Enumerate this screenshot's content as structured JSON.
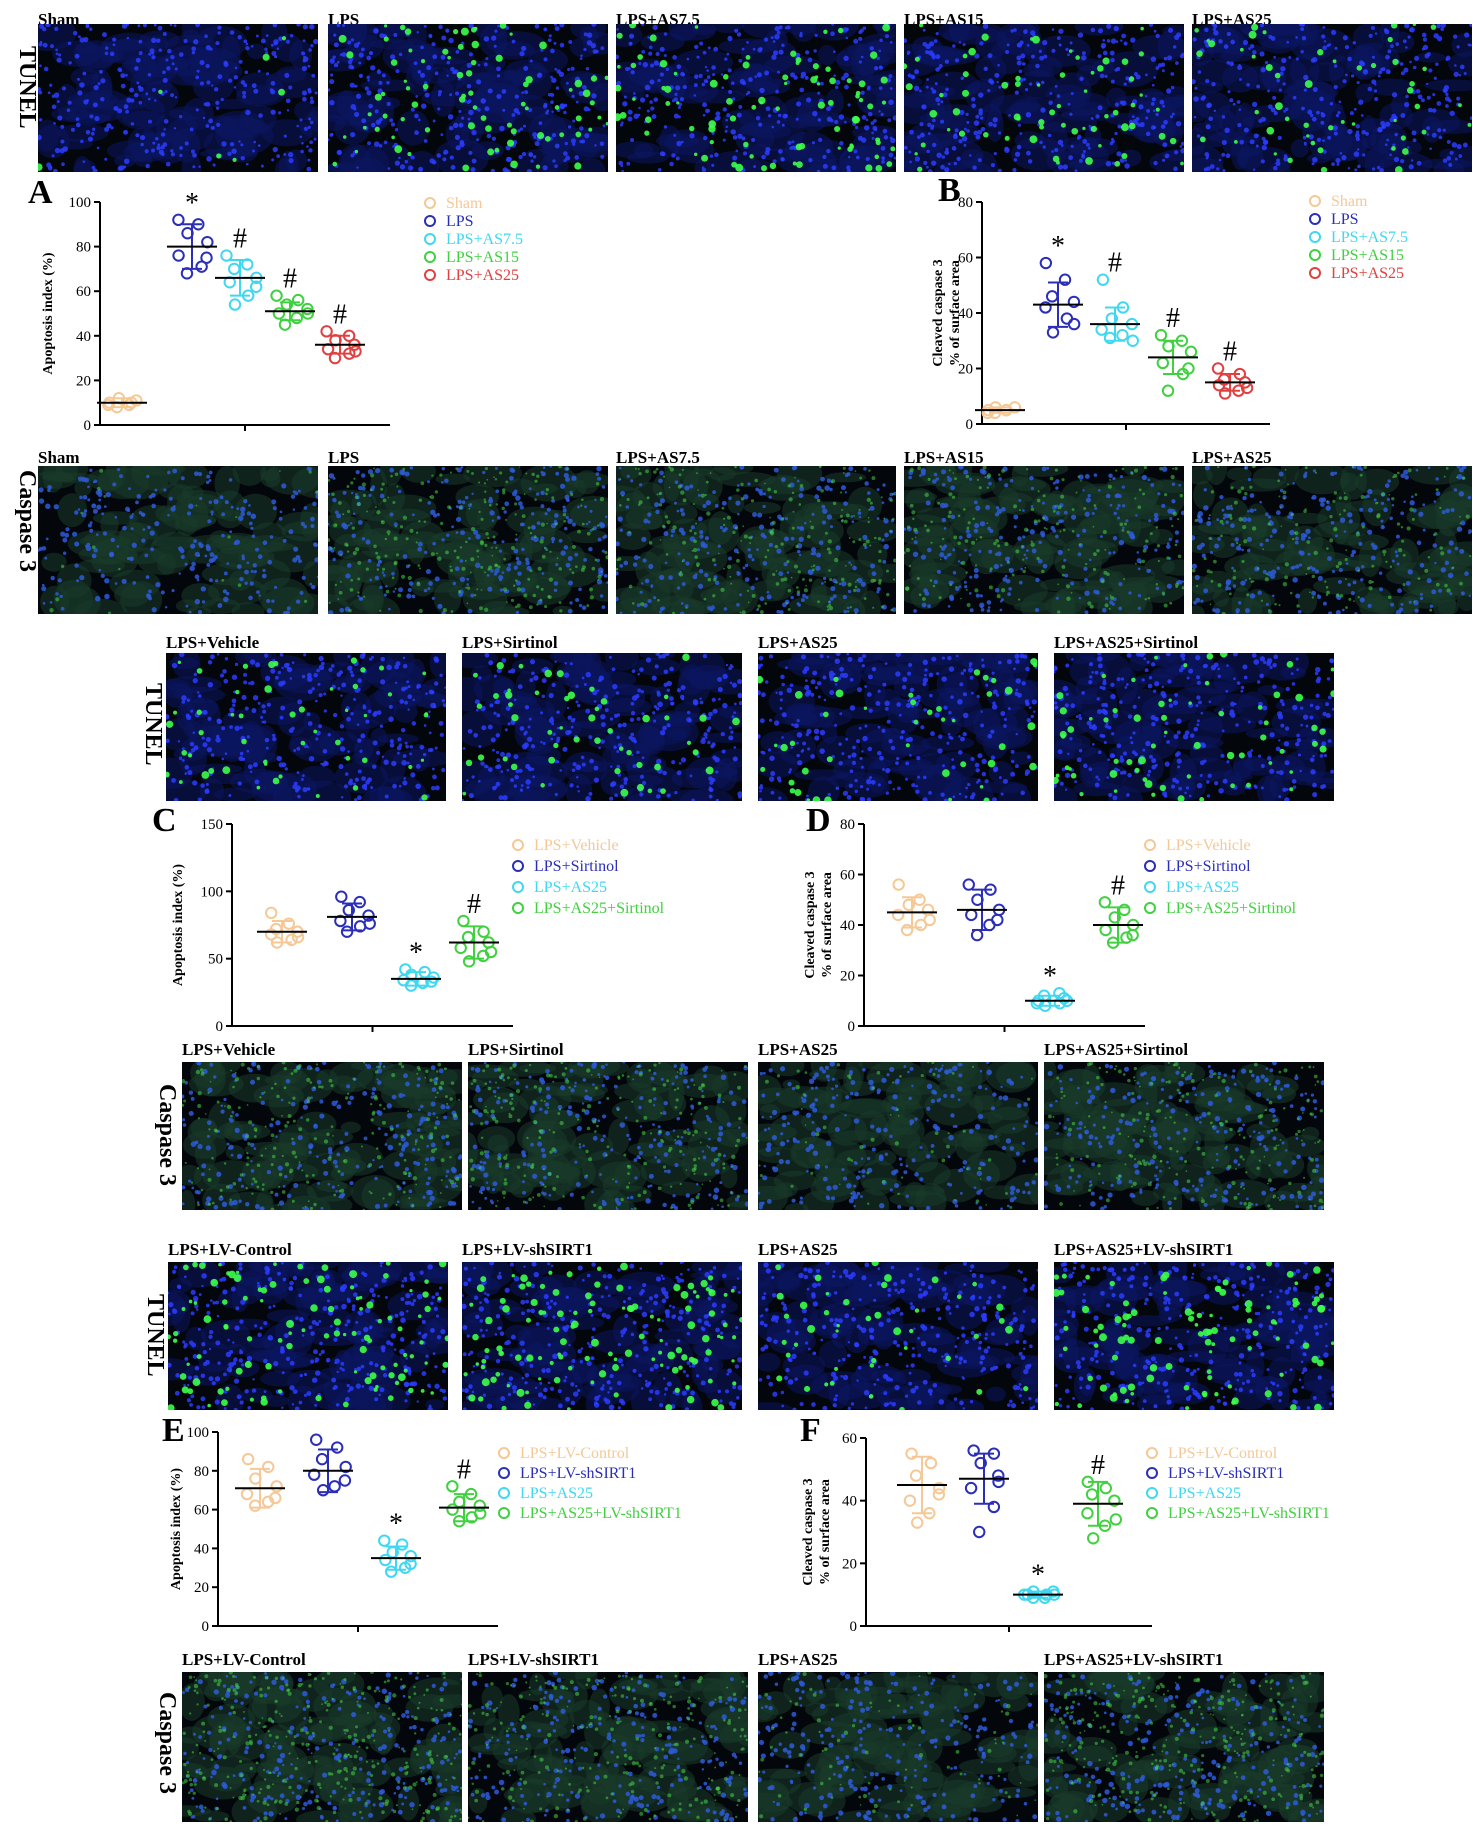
{
  "rows": [
    {
      "id": "r1",
      "stain": "TUNEL",
      "type": "tunel",
      "labels": [
        "Sham",
        "LPS",
        "LPS+AS7.5",
        "LPS+AS15",
        "LPS+AS25"
      ],
      "levels": [
        0.05,
        0.55,
        0.6,
        0.45,
        0.35
      ]
    },
    {
      "id": "r2",
      "stain": "Caspase 3",
      "type": "casp",
      "labels": [
        "Sham",
        "LPS",
        "LPS+AS7.5",
        "LPS+AS15",
        "LPS+AS25"
      ],
      "levels": [
        0.05,
        0.6,
        0.55,
        0.45,
        0.4
      ]
    },
    {
      "id": "r3",
      "stain": "TUNEL",
      "type": "tunel",
      "labels": [
        "LPS+Vehicle",
        "LPS+Sirtinol",
        "LPS+AS25",
        "LPS+AS25+Sirtinol"
      ],
      "levels": [
        0.35,
        0.35,
        0.3,
        0.45
      ]
    },
    {
      "id": "r4",
      "stain": "Caspase 3",
      "type": "casp",
      "labels": [
        "LPS+Vehicle",
        "LPS+Sirtinol",
        "LPS+AS25",
        "LPS+AS25+Sirtinol"
      ],
      "levels": [
        0.55,
        0.55,
        0.15,
        0.5
      ]
    },
    {
      "id": "r5",
      "stain": "TUNEL",
      "type": "tunel",
      "labels": [
        "LPS+LV-Control",
        "LPS+LV-shSIRT1",
        "LPS+AS25",
        "LPS+AS25+LV-shSIRT1"
      ],
      "levels": [
        0.75,
        0.85,
        0.3,
        0.7
      ]
    },
    {
      "id": "r6",
      "stain": "Caspase 3",
      "type": "casp",
      "labels": [
        "LPS+LV-Control",
        "LPS+LV-shSIRT1",
        "LPS+AS25",
        "LPS+AS25+LV-shSIRT1"
      ],
      "levels": [
        0.8,
        0.6,
        0.2,
        0.75
      ]
    }
  ],
  "chart_data": [
    {
      "panel": "A",
      "type": "scatter",
      "ylabel": "Apoptosis index (%)",
      "ylim": [
        0,
        100
      ],
      "yticks": [
        0,
        20,
        40,
        60,
        80,
        100
      ],
      "legend": "top-right",
      "series": [
        {
          "name": "Sham",
          "color": "#F5C896",
          "mean": 10,
          "sd": 2,
          "marker": "",
          "values": [
            8,
            9,
            10,
            11,
            12,
            10,
            9
          ]
        },
        {
          "name": "LPS",
          "color": "#2B2FB8",
          "mean": 80,
          "sd": 10,
          "marker": "*",
          "values": [
            68,
            71,
            76,
            82,
            86,
            90,
            92,
            75
          ]
        },
        {
          "name": "LPS+AS7.5",
          "color": "#40D8F0",
          "mean": 66,
          "sd": 8,
          "marker": "#",
          "values": [
            54,
            58,
            64,
            66,
            70,
            72,
            76,
            62
          ]
        },
        {
          "name": "LPS+AS15",
          "color": "#40D040",
          "mean": 51,
          "sd": 4,
          "marker": "#",
          "values": [
            45,
            48,
            50,
            52,
            54,
            56,
            58,
            50
          ]
        },
        {
          "name": "LPS+AS25",
          "color": "#E04040",
          "mean": 36,
          "sd": 4,
          "marker": "#",
          "values": [
            30,
            32,
            34,
            36,
            38,
            40,
            42,
            33
          ]
        }
      ]
    },
    {
      "panel": "B",
      "type": "scatter",
      "ylabel": [
        "Cleaved caspase 3",
        "% of surface area"
      ],
      "ylim": [
        0,
        80
      ],
      "yticks": [
        0,
        20,
        40,
        60,
        80
      ],
      "legend": "top-right",
      "series": [
        {
          "name": "Sham",
          "color": "#F5C896",
          "mean": 5,
          "sd": 1,
          "marker": "",
          "values": [
            4,
            5,
            5,
            6,
            6,
            5,
            4
          ]
        },
        {
          "name": "LPS",
          "color": "#2B2FB8",
          "mean": 43,
          "sd": 8,
          "marker": "*",
          "values": [
            33,
            38,
            42,
            44,
            46,
            52,
            58,
            36
          ]
        },
        {
          "name": "LPS+AS7.5",
          "color": "#40D8F0",
          "mean": 36,
          "sd": 6,
          "marker": "#",
          "values": [
            31,
            32,
            34,
            36,
            38,
            42,
            52,
            30
          ]
        },
        {
          "name": "LPS+AS15",
          "color": "#40D040",
          "mean": 24,
          "sd": 6,
          "marker": "#",
          "values": [
            12,
            18,
            22,
            26,
            28,
            30,
            32,
            20
          ]
        },
        {
          "name": "LPS+AS25",
          "color": "#E04040",
          "mean": 15,
          "sd": 3,
          "marker": "#",
          "values": [
            11,
            12,
            14,
            15,
            16,
            18,
            20,
            13
          ]
        }
      ]
    },
    {
      "panel": "C",
      "type": "scatter",
      "ylabel": "Apoptosis index (%)",
      "ylim": [
        0,
        150
      ],
      "yticks": [
        0,
        50,
        100,
        150
      ],
      "legend": "top-right",
      "series": [
        {
          "name": "LPS+Vehicle",
          "color": "#F5C896",
          "mean": 70,
          "sd": 8,
          "marker": "",
          "values": [
            62,
            64,
            68,
            70,
            72,
            76,
            84,
            66
          ]
        },
        {
          "name": "LPS+Sirtinol",
          "color": "#2B2FB8",
          "mean": 81,
          "sd": 10,
          "marker": "",
          "values": [
            70,
            74,
            78,
            82,
            86,
            92,
            96,
            76
          ]
        },
        {
          "name": "LPS+AS25",
          "color": "#40D8F0",
          "mean": 35,
          "sd": 5,
          "marker": "*",
          "values": [
            30,
            32,
            34,
            36,
            38,
            40,
            42,
            33
          ]
        },
        {
          "name": "LPS+AS25+Sirtinol",
          "color": "#40D040",
          "mean": 62,
          "sd": 12,
          "marker": "#",
          "values": [
            48,
            52,
            58,
            62,
            66,
            70,
            78,
            55
          ]
        }
      ]
    },
    {
      "panel": "D",
      "type": "scatter",
      "ylabel": [
        "Cleaved caspase 3",
        "% of surface area"
      ],
      "ylim": [
        0,
        80
      ],
      "yticks": [
        0,
        20,
        40,
        60,
        80
      ],
      "legend": "top-right",
      "series": [
        {
          "name": "LPS+Vehicle",
          "color": "#F5C896",
          "mean": 45,
          "sd": 6,
          "marker": "",
          "values": [
            38,
            40,
            44,
            46,
            48,
            50,
            56,
            42
          ]
        },
        {
          "name": "LPS+Sirtinol",
          "color": "#2B2FB8",
          "mean": 46,
          "sd": 8,
          "marker": "",
          "values": [
            36,
            40,
            44,
            46,
            50,
            54,
            56,
            42
          ]
        },
        {
          "name": "LPS+AS25",
          "color": "#40D8F0",
          "mean": 10,
          "sd": 2,
          "marker": "*",
          "values": [
            8,
            9,
            10,
            11,
            12,
            13,
            9,
            10
          ]
        },
        {
          "name": "LPS+AS25+Sirtinol",
          "color": "#40D040",
          "mean": 40,
          "sd": 7,
          "marker": "#",
          "values": [
            33,
            35,
            38,
            40,
            43,
            46,
            49,
            36
          ]
        }
      ]
    },
    {
      "panel": "E",
      "type": "scatter",
      "ylabel": "Apoptosis index (%)",
      "ylim": [
        0,
        100
      ],
      "yticks": [
        0,
        20,
        40,
        60,
        80,
        100
      ],
      "legend": "top-right",
      "series": [
        {
          "name": "LPS+LV-Control",
          "color": "#F5C896",
          "mean": 71,
          "sd": 10,
          "marker": "",
          "values": [
            62,
            64,
            68,
            72,
            76,
            82,
            86,
            66
          ]
        },
        {
          "name": "LPS+LV-shSIRT1",
          "color": "#2B2FB8",
          "mean": 80,
          "sd": 11,
          "marker": "",
          "values": [
            70,
            72,
            78,
            82,
            86,
            92,
            96,
            75
          ]
        },
        {
          "name": "LPS+AS25",
          "color": "#40D8F0",
          "mean": 35,
          "sd": 6,
          "marker": "*",
          "values": [
            28,
            30,
            34,
            36,
            38,
            42,
            44,
            32
          ]
        },
        {
          "name": "LPS+AS25+LV-shSIRT1",
          "color": "#40D040",
          "mean": 61,
          "sd": 7,
          "marker": "#",
          "values": [
            54,
            56,
            60,
            62,
            64,
            68,
            72,
            58
          ]
        }
      ]
    },
    {
      "panel": "F",
      "type": "scatter",
      "ylabel": [
        "Cleaved caspase 3",
        "% of surface area"
      ],
      "ylim": [
        0,
        60
      ],
      "yticks": [
        0,
        20,
        40,
        60
      ],
      "legend": "top-right",
      "series": [
        {
          "name": "LPS+LV-Control",
          "color": "#F5C896",
          "mean": 45,
          "sd": 9,
          "marker": "",
          "values": [
            33,
            36,
            40,
            44,
            48,
            52,
            55,
            42
          ]
        },
        {
          "name": "LPS+LV-shSIRT1",
          "color": "#2B2FB8",
          "mean": 47,
          "sd": 8,
          "marker": "",
          "values": [
            30,
            38,
            44,
            48,
            52,
            55,
            56,
            46
          ]
        },
        {
          "name": "LPS+AS25",
          "color": "#40D8F0",
          "mean": 10,
          "sd": 1,
          "marker": "*",
          "values": [
            9,
            10,
            10,
            11,
            11,
            9,
            10,
            10
          ]
        },
        {
          "name": "LPS+AS25+LV-shSIRT1",
          "color": "#40D040",
          "mean": 39,
          "sd": 7,
          "marker": "#",
          "values": [
            28,
            32,
            36,
            40,
            42,
            44,
            46,
            34
          ]
        }
      ]
    }
  ]
}
